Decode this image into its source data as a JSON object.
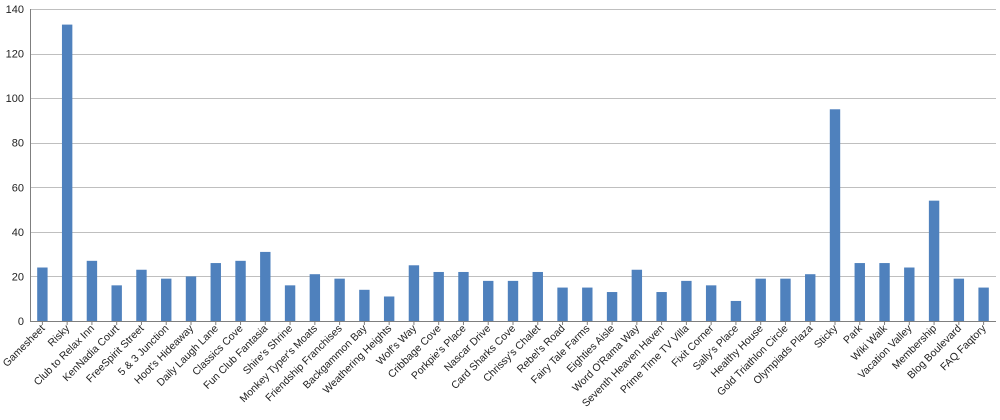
{
  "chart_data": {
    "type": "bar",
    "title": "",
    "xlabel": "",
    "ylabel": "",
    "ylim": [
      0,
      140
    ],
    "yticks": [
      0,
      20,
      40,
      60,
      80,
      100,
      120,
      140
    ],
    "grid": "horizontal",
    "legend": "none",
    "bar_color": "#4f81bd",
    "categories": [
      "Gamesheet",
      "Risky",
      "Club to Relax Inn",
      "KenNadia Court",
      "FreeSpirit Street",
      "5 & 3 Junction",
      "Hoot's Hideaway",
      "Daily Laugh Lane",
      "Classics Cove",
      "Fun Club Fantasia",
      "Shire's Shrine",
      "Monkey Typer's Moats",
      "Friendship Franchises",
      "Backgammon  Bay",
      "Weathering Heights",
      "Wolf's Way",
      "Cribbage Cove",
      "Porkpie's Place",
      "Nascar Drive",
      "Card Sharks Cove",
      "Chrissy's Chalet",
      "Rebel's Road",
      "Fairy Tale Farms",
      "Eighties Aisle",
      "Word O'Rama  Way",
      "Seventh Heaven Haven",
      "Prime Time  TV Villa",
      "Fixit Corner",
      "Sally's Place",
      "Healthy House",
      "Gold Triathlon Circle",
      "Olympiads Plaza",
      "Sticky",
      "Park",
      "Wiki Walk",
      "Vacation Valley",
      "Membership",
      "Blog Boulevard",
      "FAQ Faqtory"
    ],
    "values": [
      24,
      133,
      27,
      16,
      23,
      19,
      20,
      26,
      27,
      31,
      16,
      21,
      19,
      14,
      11,
      25,
      22,
      22,
      18,
      18,
      22,
      15,
      15,
      13,
      23,
      13,
      18,
      16,
      9,
      19,
      19,
      21,
      95,
      26,
      26,
      24,
      54,
      19,
      15
    ]
  }
}
